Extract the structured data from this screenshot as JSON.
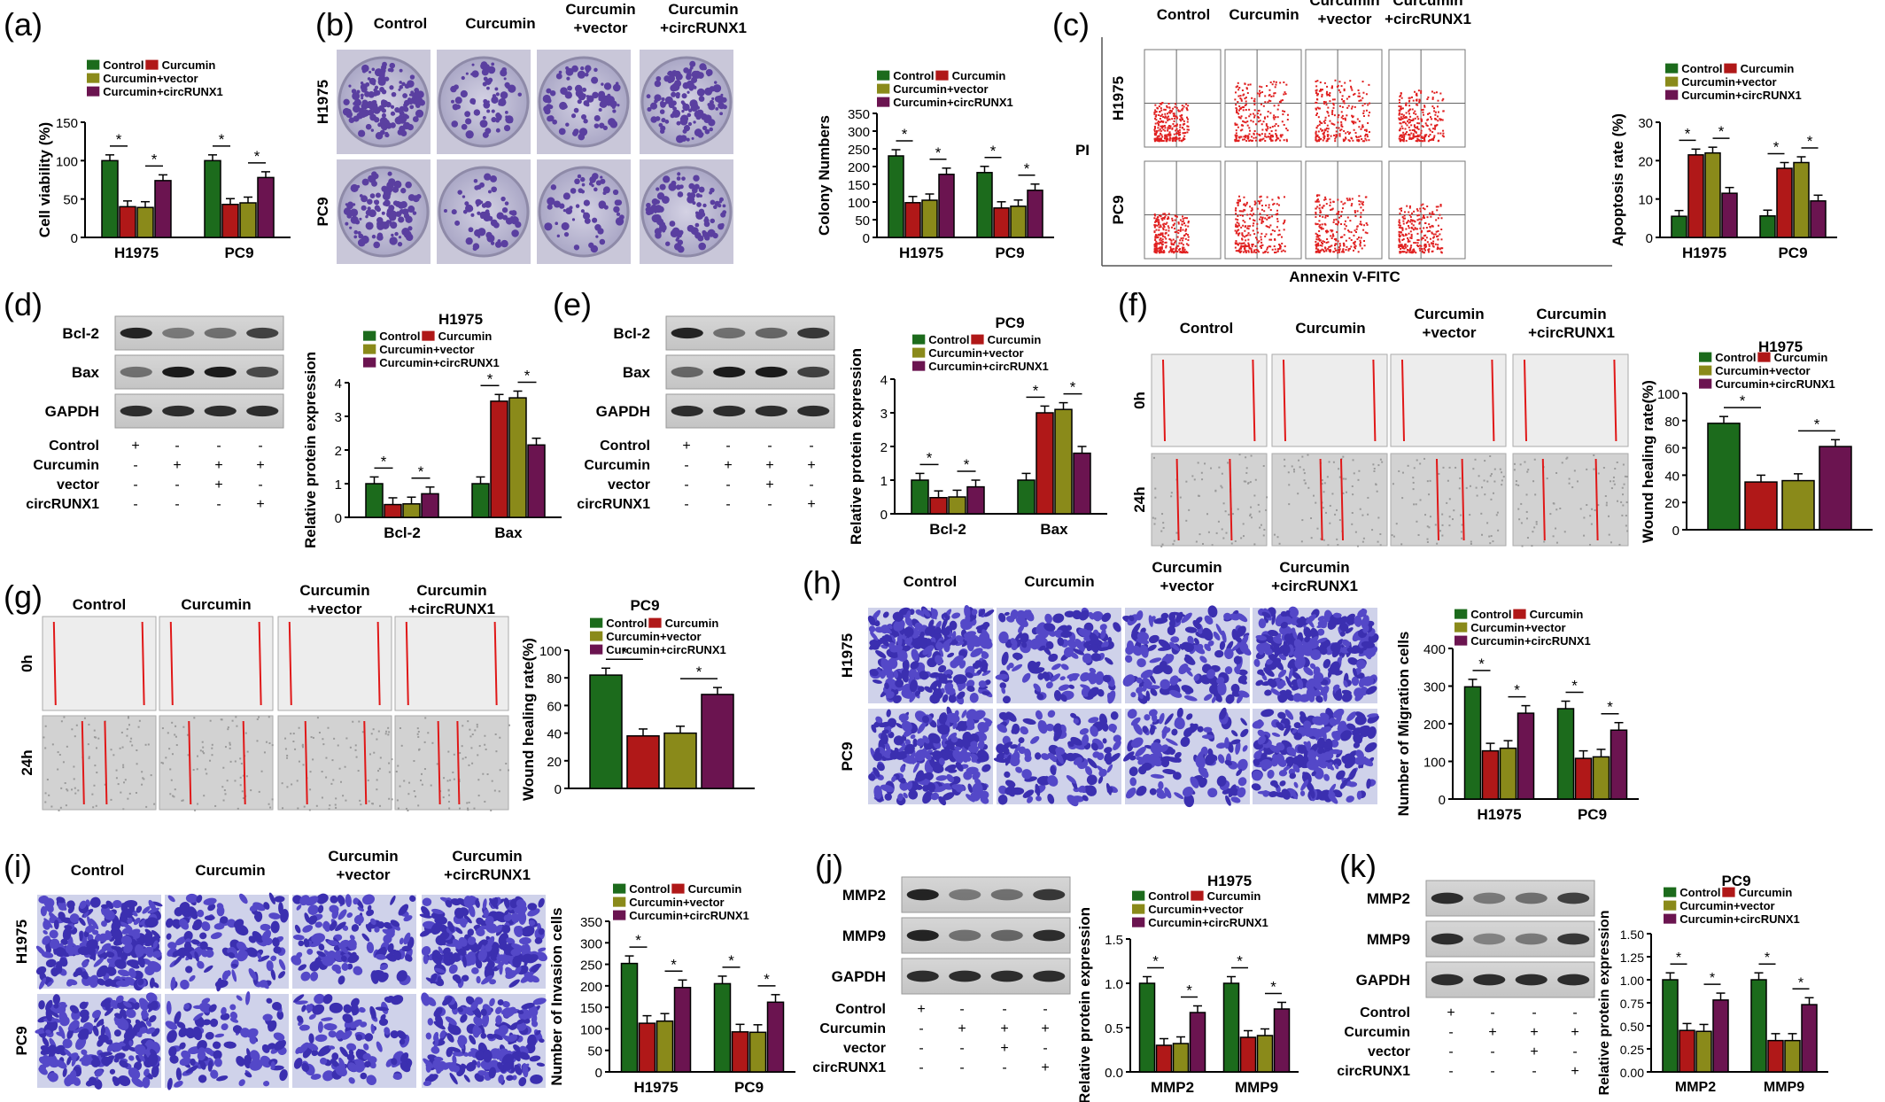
{
  "legend_names": [
    "Control",
    "Curcumin",
    "Curcumin+vector",
    "Curcumin+circRUNX1"
  ],
  "colors": {
    "control": "#1c6b1c",
    "curcumin": "#b01818",
    "vector": "#8a8a1a",
    "circ": "#6b1450"
  },
  "condition_labels": [
    "Control",
    "Curcumin",
    "vector",
    "circRUNX1"
  ],
  "matrix": [
    [
      "+",
      "-",
      "-",
      "-"
    ],
    [
      "-",
      "+",
      "+",
      "+"
    ],
    [
      "-",
      "-",
      "+",
      "-"
    ],
    [
      "-",
      "-",
      "-",
      "+"
    ]
  ],
  "col_headers": [
    "Control",
    "Curcumin",
    "Curcumin\n+vector",
    "Curcumin\n+circRUNX1"
  ],
  "star": "*",
  "panels": {
    "a": {
      "label": "(a)"
    },
    "b": {
      "label": "(b)",
      "rows": [
        "H1975",
        "PC9"
      ]
    },
    "c": {
      "label": "(c)",
      "rows": [
        "H1975",
        "PC9"
      ],
      "yaxis": "PI",
      "xaxis": "Annexin V-FITC"
    },
    "d": {
      "label": "(d)",
      "blot_rows": [
        "Bcl-2",
        "Bax",
        "GAPDH"
      ]
    },
    "e": {
      "label": "(e)",
      "blot_rows": [
        "Bcl-2",
        "Bax",
        "GAPDH"
      ]
    },
    "f": {
      "label": "(f)",
      "rows": [
        "0h",
        "24h"
      ]
    },
    "g": {
      "label": "(g)",
      "rows": [
        "0h",
        "24h"
      ]
    },
    "h": {
      "label": "(h)",
      "rows": [
        "H1975",
        "PC9"
      ]
    },
    "i": {
      "label": "(i)",
      "rows": [
        "H1975",
        "PC9"
      ]
    },
    "j": {
      "label": "(j)",
      "blot_rows": [
        "MMP2",
        "MMP9",
        "GAPDH"
      ]
    },
    "k": {
      "label": "(k)",
      "blot_rows": [
        "MMP2",
        "MMP9",
        "GAPDH"
      ]
    }
  },
  "chart_data": [
    {
      "id": "a",
      "type": "bar",
      "title": "",
      "ylabel": "Cell viability (%)",
      "categories": [
        "H1975",
        "PC9"
      ],
      "ylim": [
        0,
        150
      ],
      "yticks": [
        0,
        50,
        100,
        150
      ],
      "series": [
        {
          "name": "Control",
          "values": [
            100,
            100
          ]
        },
        {
          "name": "Curcumin",
          "values": [
            40,
            43
          ]
        },
        {
          "name": "Curcumin+vector",
          "values": [
            39,
            45
          ]
        },
        {
          "name": "Curcumin+circRUNX1",
          "values": [
            74,
            78
          ]
        }
      ]
    },
    {
      "id": "b",
      "type": "bar",
      "title": "",
      "ylabel": "Colony Numbers",
      "categories": [
        "H1975",
        "PC9"
      ],
      "ylim": [
        0,
        350
      ],
      "yticks": [
        0,
        50,
        100,
        150,
        200,
        250,
        300,
        350
      ],
      "series": [
        {
          "name": "Control",
          "values": [
            230,
            183
          ]
        },
        {
          "name": "Curcumin",
          "values": [
            98,
            83
          ]
        },
        {
          "name": "Curcumin+vector",
          "values": [
            105,
            88
          ]
        },
        {
          "name": "Curcumin+circRUNX1",
          "values": [
            178,
            133
          ]
        }
      ]
    },
    {
      "id": "c",
      "type": "bar",
      "title": "",
      "ylabel": "Apoptosis rate (%)",
      "categories": [
        "H1975",
        "PC9"
      ],
      "ylim": [
        0,
        30
      ],
      "yticks": [
        0,
        10,
        20,
        30
      ],
      "series": [
        {
          "name": "Control",
          "values": [
            5.5,
            5.6
          ]
        },
        {
          "name": "Curcumin",
          "values": [
            21.5,
            18
          ]
        },
        {
          "name": "Curcumin+vector",
          "values": [
            22,
            19.5
          ]
        },
        {
          "name": "Curcumin+circRUNX1",
          "values": [
            11.5,
            9.5
          ]
        }
      ]
    },
    {
      "id": "d",
      "type": "bar",
      "title": "H1975",
      "ylabel": "Relative protein expression",
      "categories": [
        "Bcl-2",
        "Bax"
      ],
      "ylim": [
        0,
        4
      ],
      "yticks": [
        0,
        1,
        2,
        3,
        4
      ],
      "series": [
        {
          "name": "Control",
          "values": [
            1.0,
            1.0
          ]
        },
        {
          "name": "Curcumin",
          "values": [
            0.38,
            3.45
          ]
        },
        {
          "name": "Curcumin+vector",
          "values": [
            0.4,
            3.55
          ]
        },
        {
          "name": "Curcumin+circRUNX1",
          "values": [
            0.7,
            2.15
          ]
        }
      ]
    },
    {
      "id": "e",
      "type": "bar",
      "title": "PC9",
      "ylabel": "Relative protein expression",
      "categories": [
        "Bcl-2",
        "Bax"
      ],
      "ylim": [
        0,
        4
      ],
      "yticks": [
        0,
        1,
        2,
        3,
        4
      ],
      "series": [
        {
          "name": "Control",
          "values": [
            1.0,
            1.0
          ]
        },
        {
          "name": "Curcumin",
          "values": [
            0.48,
            3.0
          ]
        },
        {
          "name": "Curcumin+vector",
          "values": [
            0.5,
            3.1
          ]
        },
        {
          "name": "Curcumin+circRUNX1",
          "values": [
            0.8,
            1.8
          ]
        }
      ]
    },
    {
      "id": "f",
      "type": "bar",
      "title": "H1975",
      "ylabel": "Wound healing rate(%)",
      "categories": [
        ""
      ],
      "ylim": [
        0,
        100
      ],
      "yticks": [
        0,
        20,
        40,
        60,
        80,
        100
      ],
      "series": [
        {
          "name": "Control",
          "values": [
            78
          ]
        },
        {
          "name": "Curcumin",
          "values": [
            35
          ]
        },
        {
          "name": "Curcumin+vector",
          "values": [
            36
          ]
        },
        {
          "name": "Curcumin+circRUNX1",
          "values": [
            61
          ]
        }
      ]
    },
    {
      "id": "g",
      "type": "bar",
      "title": "PC9",
      "ylabel": "Wound healing rate(%)",
      "categories": [
        ""
      ],
      "ylim": [
        0,
        100
      ],
      "yticks": [
        0,
        20,
        40,
        60,
        80,
        100
      ],
      "series": [
        {
          "name": "Control",
          "values": [
            82
          ]
        },
        {
          "name": "Curcumin",
          "values": [
            38
          ]
        },
        {
          "name": "Curcumin+vector",
          "values": [
            40
          ]
        },
        {
          "name": "Curcumin+circRUNX1",
          "values": [
            68
          ]
        }
      ]
    },
    {
      "id": "h",
      "type": "bar",
      "title": "",
      "ylabel": "Number of Migration cells",
      "categories": [
        "H1975",
        "PC9"
      ],
      "ylim": [
        0,
        400
      ],
      "yticks": [
        0,
        100,
        200,
        300,
        400
      ],
      "series": [
        {
          "name": "Control",
          "values": [
            298,
            240
          ]
        },
        {
          "name": "Curcumin",
          "values": [
            128,
            108
          ]
        },
        {
          "name": "Curcumin+vector",
          "values": [
            135,
            112
          ]
        },
        {
          "name": "Curcumin+circRUNX1",
          "values": [
            228,
            183
          ]
        }
      ]
    },
    {
      "id": "i",
      "type": "bar",
      "title": "",
      "ylabel": "Number of Invasion cells",
      "categories": [
        "H1975",
        "PC9"
      ],
      "ylim": [
        0,
        350
      ],
      "yticks": [
        0,
        50,
        100,
        150,
        200,
        250,
        300,
        350
      ],
      "series": [
        {
          "name": "Control",
          "values": [
            252,
            205
          ]
        },
        {
          "name": "Curcumin",
          "values": [
            113,
            93
          ]
        },
        {
          "name": "Curcumin+vector",
          "values": [
            118,
            92
          ]
        },
        {
          "name": "Curcumin+circRUNX1",
          "values": [
            196,
            162
          ]
        }
      ]
    },
    {
      "id": "j",
      "type": "bar",
      "title": "H1975",
      "ylabel": "Relative protein expression",
      "categories": [
        "MMP2",
        "MMP9"
      ],
      "ylim": [
        0,
        1.5
      ],
      "yticks": [
        "0.0",
        "0.5",
        "1.0",
        "1.5"
      ],
      "series": [
        {
          "name": "Control",
          "values": [
            1.0,
            1.0
          ]
        },
        {
          "name": "Curcumin",
          "values": [
            0.3,
            0.39
          ]
        },
        {
          "name": "Curcumin+vector",
          "values": [
            0.32,
            0.41
          ]
        },
        {
          "name": "Curcumin+circRUNX1",
          "values": [
            0.67,
            0.71
          ]
        }
      ]
    },
    {
      "id": "k",
      "type": "bar",
      "title": "PC9",
      "ylabel": "Relative protein expression",
      "categories": [
        "MMP2",
        "MMP9"
      ],
      "ylim": [
        0,
        1.5
      ],
      "yticks": [
        "0.00",
        "0.25",
        "0.50",
        "0.75",
        "1.00",
        "1.25",
        "1.50"
      ],
      "series": [
        {
          "name": "Control",
          "values": [
            1.0,
            1.0
          ]
        },
        {
          "name": "Curcumin",
          "values": [
            0.45,
            0.34
          ]
        },
        {
          "name": "Curcumin+vector",
          "values": [
            0.44,
            0.34
          ]
        },
        {
          "name": "Curcumin+circRUNX1",
          "values": [
            0.78,
            0.73
          ]
        }
      ]
    }
  ]
}
